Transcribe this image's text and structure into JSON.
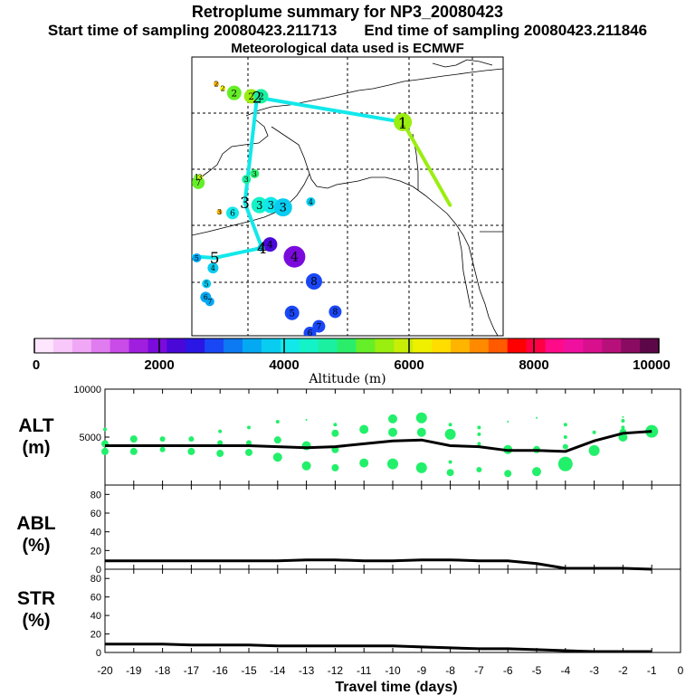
{
  "header": {
    "title": "Retroplume summary for NP3_20080423",
    "start_label": "Start time of sampling 20080423.211713",
    "end_label": "End time of sampling 20080423.211846",
    "met_label": "Meteorological data used is ECMWF"
  },
  "map": {
    "labels": [
      {
        "text": "1",
        "lon": -154.1,
        "lat": 64.2,
        "alt": 5500,
        "r": 10
      },
      {
        "text": "2",
        "lon": -174.8,
        "lat": 66.8,
        "alt": 5200,
        "r": 8
      },
      {
        "text": "2",
        "lon": -172.7,
        "lat": 66.5,
        "alt": 5600,
        "r": 8
      },
      {
        "text": "2",
        "lon": -171.5,
        "lat": 66.5,
        "alt": 4800,
        "r": 8
      },
      {
        "text": "2",
        "lon": -177,
        "lat": 67.6,
        "alt": 6800,
        "r": 3
      },
      {
        "text": "2",
        "lon": -176.2,
        "lat": 67.2,
        "alt": 6200,
        "r": 3
      },
      {
        "text": "3",
        "lon": -173.3,
        "lat": 59.1,
        "alt": 4800,
        "r": 5
      },
      {
        "text": "3",
        "lon": -172.3,
        "lat": 59.6,
        "alt": 4900,
        "r": 5
      },
      {
        "text": "3",
        "lon": -171.7,
        "lat": 56.8,
        "alt": 4400,
        "r": 9
      },
      {
        "text": "3",
        "lon": -170.3,
        "lat": 56.8,
        "alt": 4200,
        "r": 9
      },
      {
        "text": "3",
        "lon": -168.8,
        "lat": 56.6,
        "alt": 3800,
        "r": 10
      },
      {
        "text": "3",
        "lon": -176.6,
        "lat": 56.2,
        "alt": 6800,
        "r": 3
      },
      {
        "text": "4",
        "lon": -165.4,
        "lat": 57.1,
        "alt": 3800,
        "r": 5
      },
      {
        "text": "4",
        "lon": -170.4,
        "lat": 53.3,
        "alt": 2400,
        "r": 8
      },
      {
        "text": "4",
        "lon": -167.4,
        "lat": 52.2,
        "alt": 2100,
        "r": 12
      },
      {
        "text": "4",
        "lon": -171.5,
        "lat": 53.0,
        "alt": 3800,
        "r": 4
      },
      {
        "text": "4",
        "lon": -177.4,
        "lat": 51.2,
        "alt": 3800,
        "r": 6
      },
      {
        "text": "5",
        "lon": -179.4,
        "lat": 52.1,
        "alt": 3600,
        "r": 5
      },
      {
        "text": "5",
        "lon": -178.2,
        "lat": 49.8,
        "alt": 3800,
        "r": 5
      },
      {
        "text": "5",
        "lon": -167.7,
        "lat": 47.2,
        "alt": 2900,
        "r": 8
      },
      {
        "text": "6",
        "lon": -183.2,
        "lat": 52.3,
        "alt": 3800,
        "r": 3
      },
      {
        "text": "6",
        "lon": -178.3,
        "lat": 48.6,
        "alt": 3600,
        "r": 6
      },
      {
        "text": "6",
        "lon": -175.0,
        "lat": 56.1,
        "alt": 4200,
        "r": 7
      },
      {
        "text": "6",
        "lon": -165.5,
        "lat": 45.4,
        "alt": 2800,
        "r": 7
      },
      {
        "text": "7",
        "lon": -177.8,
        "lat": 48.2,
        "alt": 3600,
        "r": 5
      },
      {
        "text": "7",
        "lon": -179.2,
        "lat": 58.8,
        "alt": 5300,
        "r": 7
      },
      {
        "text": "7",
        "lon": -164.4,
        "lat": 46.0,
        "alt": 3000,
        "r": 7
      },
      {
        "text": "8",
        "lon": -162.4,
        "lat": 47.3,
        "alt": 2900,
        "r": 7
      },
      {
        "text": "8",
        "lon": -165.0,
        "lat": 50.0,
        "alt": 2800,
        "r": 9
      },
      {
        "text": "8",
        "lon": -171.8,
        "lat": 44.2,
        "alt": 2300,
        "r": 3
      },
      {
        "text": "1",
        "lon": -179.4,
        "lat": 59.3,
        "alt": 5200,
        "r": 3
      },
      {
        "text": "3",
        "lon": -179.0,
        "lat": 59.3,
        "alt": 5800,
        "r": 3
      }
    ],
    "track_labels": [
      {
        "text": "1",
        "lon": -154.1,
        "lat": 64.1
      },
      {
        "text": "2",
        "lon": -172.0,
        "lat": 66.4
      },
      {
        "text": "3",
        "lon": -173.5,
        "lat": 57.0
      },
      {
        "text": "4",
        "lon": -171.4,
        "lat": 53.0
      },
      {
        "text": "5",
        "lon": -177.2,
        "lat": 52.1
      },
      {
        "text": "6",
        "lon": -181.2,
        "lat": 52.3
      }
    ]
  },
  "colorbar": {
    "ticks": [
      "0",
      "2000",
      "4000",
      "6000",
      "8000",
      "10000"
    ],
    "label": "Altitude (m)",
    "colors": [
      "#ffe6ff",
      "#f9c8fa",
      "#f0a8f6",
      "#e17cf0",
      "#c94be8",
      "#a01fdf",
      "#7a0bdc",
      "#4a08d8",
      "#2a17e6",
      "#1a47f6",
      "#0c7af2",
      "#05a8f2",
      "#08ccf0",
      "#12e8ea",
      "#14f2c8",
      "#1af0a0",
      "#2aee6a",
      "#66ee28",
      "#9aee10",
      "#c8ee08",
      "#eef000",
      "#ffdd00",
      "#ffb400",
      "#ff8a00",
      "#ff5a00",
      "#ff0000",
      "#ff0044",
      "#ff0a88",
      "#f010a0",
      "#d8108e",
      "#b8107a",
      "#8a0c62",
      "#5c0848"
    ]
  },
  "panels": {
    "alt": {
      "label1": "ALT",
      "label2": "(m)"
    },
    "abl": {
      "label1": "ABL",
      "label2": "(%)"
    },
    "str": {
      "label1": "STR",
      "label2": "(%)"
    }
  },
  "xaxis": {
    "label": "Travel time (days)"
  },
  "chart_data": [
    {
      "type": "line",
      "title": "ALT",
      "ylabel": "(m)",
      "ylim": [
        0,
        10000
      ],
      "ytick_labels": [
        "10000",
        "5000"
      ],
      "x": [
        -20,
        -19,
        -18,
        -17,
        -16,
        -15,
        -14,
        -13,
        -12,
        -11,
        -10,
        -9,
        -8,
        -7,
        -6,
        -5,
        -4,
        -3,
        -2,
        -1
      ],
      "xtick_labels": [
        "-20",
        "-19",
        "-18",
        "-17",
        "-16",
        "-15",
        "-14",
        "-13",
        "-12",
        "-11",
        "-10",
        "-9",
        "-8",
        "-7",
        "-6",
        "-5",
        "-4",
        "-3",
        "-2",
        "-1",
        "0"
      ],
      "series": [
        {
          "name": "mean altitude",
          "values": [
            4100,
            4100,
            4100,
            4100,
            4100,
            4100,
            4000,
            3900,
            4000,
            4300,
            4600,
            4700,
            4100,
            4000,
            3600,
            3600,
            3500,
            4600,
            5400,
            5600
          ]
        }
      ],
      "scatter": [
        {
          "x": -20,
          "y": 5800,
          "r": 2
        },
        {
          "x": -20,
          "y": 4300,
          "r": 4
        },
        {
          "x": -20,
          "y": 3500,
          "r": 4
        },
        {
          "x": -19,
          "y": 4800,
          "r": 4
        },
        {
          "x": -19,
          "y": 3500,
          "r": 4
        },
        {
          "x": -18,
          "y": 4800,
          "r": 3
        },
        {
          "x": -18,
          "y": 3700,
          "r": 3
        },
        {
          "x": -17,
          "y": 4800,
          "r": 3
        },
        {
          "x": -17,
          "y": 3500,
          "r": 4
        },
        {
          "x": -16,
          "y": 5600,
          "r": 2
        },
        {
          "x": -16,
          "y": 4400,
          "r": 3
        },
        {
          "x": -16,
          "y": 3300,
          "r": 4
        },
        {
          "x": -15,
          "y": 6000,
          "r": 2
        },
        {
          "x": -15,
          "y": 4400,
          "r": 3
        },
        {
          "x": -15,
          "y": 3400,
          "r": 4
        },
        {
          "x": -14,
          "y": 6600,
          "r": 2
        },
        {
          "x": -14,
          "y": 4700,
          "r": 4
        },
        {
          "x": -14,
          "y": 2900,
          "r": 5
        },
        {
          "x": -13,
          "y": 6800,
          "r": 1
        },
        {
          "x": -13,
          "y": 4100,
          "r": 5
        },
        {
          "x": -13,
          "y": 2000,
          "r": 5
        },
        {
          "x": -12,
          "y": 6300,
          "r": 2
        },
        {
          "x": -12,
          "y": 5400,
          "r": 4
        },
        {
          "x": -12,
          "y": 3700,
          "r": 4
        },
        {
          "x": -12,
          "y": 1800,
          "r": 4
        },
        {
          "x": -11,
          "y": 5800,
          "r": 5
        },
        {
          "x": -11,
          "y": 2300,
          "r": 5
        },
        {
          "x": -10,
          "y": 6900,
          "r": 5
        },
        {
          "x": -10,
          "y": 5500,
          "r": 5
        },
        {
          "x": -10,
          "y": 2200,
          "r": 6
        },
        {
          "x": -9,
          "y": 7000,
          "r": 6
        },
        {
          "x": -9,
          "y": 5500,
          "r": 5
        },
        {
          "x": -9,
          "y": 1800,
          "r": 6
        },
        {
          "x": -8,
          "y": 6300,
          "r": 2
        },
        {
          "x": -8,
          "y": 5300,
          "r": 6
        },
        {
          "x": -8,
          "y": 2400,
          "r": 2
        },
        {
          "x": -8,
          "y": 1300,
          "r": 4
        },
        {
          "x": -7,
          "y": 6000,
          "r": 2
        },
        {
          "x": -7,
          "y": 5300,
          "r": 2
        },
        {
          "x": -7,
          "y": 4300,
          "r": 2
        },
        {
          "x": -7,
          "y": 1600,
          "r": 3
        },
        {
          "x": -6,
          "y": 6600,
          "r": 1
        },
        {
          "x": -6,
          "y": 3700,
          "r": 5
        },
        {
          "x": -6,
          "y": 1200,
          "r": 4
        },
        {
          "x": -5,
          "y": 7000,
          "r": 1
        },
        {
          "x": -5,
          "y": 3700,
          "r": 4
        },
        {
          "x": -5,
          "y": 1400,
          "r": 5
        },
        {
          "x": -4,
          "y": 6300,
          "r": 2
        },
        {
          "x": -4,
          "y": 5000,
          "r": 2
        },
        {
          "x": -4,
          "y": 4000,
          "r": 3
        },
        {
          "x": -4,
          "y": 2200,
          "r": 8
        },
        {
          "x": -3,
          "y": 5500,
          "r": 2
        },
        {
          "x": -3,
          "y": 3600,
          "r": 6
        },
        {
          "x": -2,
          "y": 7100,
          "r": 1
        },
        {
          "x": -2,
          "y": 6700,
          "r": 2
        },
        {
          "x": -2,
          "y": 6000,
          "r": 2
        },
        {
          "x": -2,
          "y": 5500,
          "r": 4
        },
        {
          "x": -2,
          "y": 5000,
          "r": 5
        },
        {
          "x": -1,
          "y": 5600,
          "r": 7
        }
      ]
    },
    {
      "type": "line",
      "title": "ABL",
      "ylabel": "(%)",
      "ylim": [
        0,
        90
      ],
      "ytick_labels": [
        "80",
        "60",
        "40",
        "20",
        "0"
      ],
      "x": [
        -20,
        -19,
        -18,
        -17,
        -16,
        -15,
        -14,
        -13,
        -12,
        -11,
        -10,
        -9,
        -8,
        -7,
        -6,
        -5,
        -4,
        -3,
        -2,
        -1
      ],
      "series": [
        {
          "name": "ABL fraction",
          "values": [
            9,
            9,
            9,
            9,
            9,
            9,
            9,
            10,
            10,
            9,
            9,
            10,
            10,
            9,
            9,
            6,
            1,
            1,
            1,
            0
          ]
        }
      ]
    },
    {
      "type": "line",
      "title": "STR",
      "ylabel": "(%)",
      "ylim": [
        0,
        90
      ],
      "ytick_labels": [
        "80",
        "60",
        "40",
        "20",
        "0"
      ],
      "x": [
        -20,
        -19,
        -18,
        -17,
        -16,
        -15,
        -14,
        -13,
        -12,
        -11,
        -10,
        -9,
        -8,
        -7,
        -6,
        -5,
        -4,
        -3,
        -2,
        -1
      ],
      "series": [
        {
          "name": "STR fraction",
          "values": [
            9,
            9,
            9,
            8,
            8,
            8,
            7,
            7,
            7,
            7,
            7,
            6,
            5,
            4,
            4,
            3,
            2,
            1,
            1,
            1
          ]
        }
      ]
    }
  ]
}
